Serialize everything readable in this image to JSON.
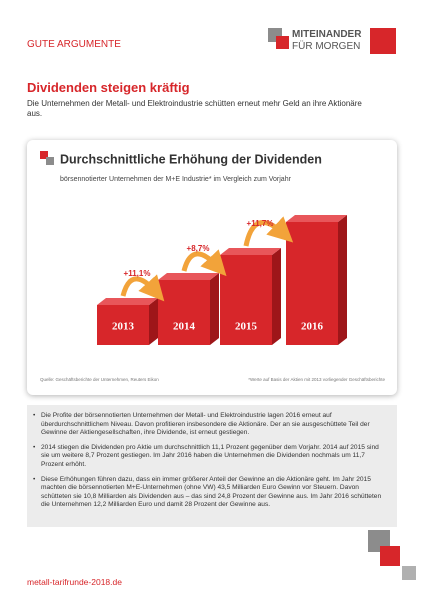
{
  "header": {
    "label": "GUTE ARGUMENTE",
    "logo_line1": "MITEINANDER",
    "logo_line2": "FÜR MORGEN"
  },
  "intro": {
    "title": "Dividenden steigen kräftig",
    "text": "Die Unternehmen der Metall- und Elektroindustrie schütten erneut mehr Geld an ihre Aktionäre aus."
  },
  "chart_data": {
    "type": "bar",
    "title": "Durchschnittliche Erhöhung der Dividenden",
    "subtitle": "börsennotierter Unternehmen der M+E Industrie* im Vergleich zum Vorjahr",
    "categories": [
      "2013",
      "2014",
      "2015",
      "2016"
    ],
    "values": [
      40,
      65,
      90,
      123
    ],
    "color": "#d7262a",
    "ylim": [
      0,
      150
    ],
    "annotations": [
      "+11,1%",
      "+8,7%",
      "+11,7%"
    ],
    "source": "Quelle: Geschäftsberichte der Unternehmen, Reuters Eikon",
    "note": "*Werte auf Basis der Aktien mit 2013 vorliegender Geschäftsberichte"
  },
  "bullets": [
    "Die Profite der börsennotierten Unternehmen der Metall- und Elektroindustrie lagen 2016 erneut auf überdurchschnittlichem Niveau. Davon profitieren insbesondere die Aktionäre. Der an sie ausgeschüttete Teil der Gewinne der Aktiengesellschaften, ihre Dividende, ist erneut gestiegen.",
    "2014 stiegen die Dividenden pro Aktie um durchschnittlich 11,1 Prozent gegenüber dem Vorjahr. 2014 auf 2015 sind sie um weitere 8,7 Prozent gestiegen. Im Jahr 2016 haben die Unternehmen die Dividenden nochmals um 11,7 Prozent erhöht.",
    "Diese Erhöhungen führen dazu, dass ein immer größerer Anteil der Gewinne an die Aktionäre geht. Im Jahr 2015 machten die börsennotierten M+E-Unternehmen (ohne VW) 43,5 Milliarden Euro Gewinn vor Steuern. Davon schütteten sie 10,8 Milliarden als Dividenden aus – das sind 24,8 Prozent der Gewinne aus. Im Jahr 2016 schütteten die Unternehmen 12,2 Milliarden Euro und damit 28 Prozent der Gewinne aus."
  ],
  "footer": {
    "url": "metall-tarifrunde-2018.de"
  }
}
